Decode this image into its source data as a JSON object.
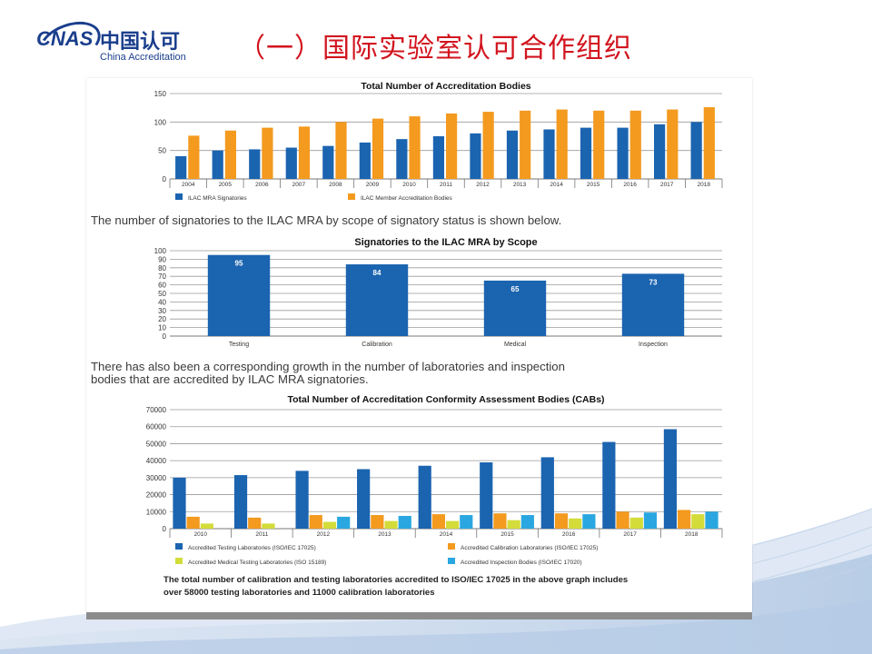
{
  "header": {
    "logo_mark": "CNAS",
    "logo_cn": "中国认可",
    "logo_en": "China Accreditation",
    "title": "（一）国际实验室认可合作组织"
  },
  "text": {
    "para1": "The number of signatories to the ILAC MRA by scope of signatory status is shown below.",
    "para2_line1": "There has also been a corresponding growth in the number of laboratories and inspection",
    "para2_line2": "bodies that are accredited by ILAC MRA signatories.",
    "note_line1": "The total number of calibration and testing laboratories accredited to ISO/IEC 17025 in the above graph includes",
    "note_line2": "over 58000 testing laboratories and 11000 calibration laboratories"
  },
  "colors": {
    "blue": "#1b64b0",
    "orange": "#f39a1f",
    "yellow": "#d4dc3a",
    "cyan": "#2aa7e0",
    "title_red": "#d2141e"
  },
  "chart_data": [
    {
      "type": "bar",
      "title": "Total Number of Accreditation Bodies",
      "categories": [
        "2004",
        "2005",
        "2006",
        "2007",
        "2008",
        "2009",
        "2010",
        "2011",
        "2012",
        "2013",
        "2014",
        "2015",
        "2016",
        "2017",
        "2018"
      ],
      "series": [
        {
          "name": "ILAC MRA Signatories",
          "color": "#1b64b0",
          "values": [
            40,
            50,
            52,
            55,
            58,
            64,
            70,
            75,
            80,
            85,
            87,
            90,
            90,
            96,
            100
          ]
        },
        {
          "name": "ILAC Member Accreditation Bodies",
          "color": "#f39a1f",
          "values": [
            76,
            85,
            90,
            92,
            100,
            106,
            110,
            115,
            118,
            120,
            122,
            120,
            120,
            122,
            126
          ]
        }
      ],
      "ylim": [
        0,
        150
      ],
      "yticks": [
        0,
        50,
        100,
        150
      ],
      "legend": "bottom"
    },
    {
      "type": "bar",
      "title": "Signatories to the ILAC MRA by Scope",
      "categories": [
        "Testing",
        "Calibration",
        "Medical",
        "Inspection"
      ],
      "values": [
        95,
        84,
        65,
        73
      ],
      "data_labels": [
        "95",
        "84",
        "65",
        "73"
      ],
      "color": "#1b64b0",
      "ylim": [
        0,
        100
      ],
      "yticks": [
        0,
        10,
        20,
        30,
        40,
        50,
        60,
        70,
        80,
        90,
        100
      ]
    },
    {
      "type": "bar",
      "title": "Total Number of Accreditation Conformity Assessment Bodies (CABs)",
      "categories": [
        "2010",
        "2011",
        "2012",
        "2013",
        "2014",
        "2015",
        "2016",
        "2017",
        "2018"
      ],
      "series": [
        {
          "name": "Accredited Testing Laboratories (ISO/IEC 17025)",
          "color": "#1b64b0",
          "values": [
            30000,
            31500,
            34000,
            35000,
            37000,
            39000,
            42000,
            51000,
            58500
          ]
        },
        {
          "name": "Accredited Calibration Laboratories (ISO/IEC 17025)",
          "color": "#f39a1f",
          "values": [
            7000,
            6500,
            8000,
            8000,
            8500,
            9000,
            9000,
            10000,
            11000
          ]
        },
        {
          "name": "Accredited Medical Testing Laboratories (ISO 15189)",
          "color": "#d4dc3a",
          "values": [
            3000,
            3000,
            4000,
            4500,
            4500,
            5000,
            6000,
            6500,
            8500
          ]
        },
        {
          "name": "Accredited Inspection Bodies (ISO/IEC 17020)",
          "color": "#2aa7e0",
          "values": [
            0,
            0,
            7000,
            7500,
            8000,
            8000,
            8500,
            9500,
            10000
          ]
        }
      ],
      "ylim": [
        0,
        70000
      ],
      "yticks": [
        0,
        10000,
        20000,
        30000,
        40000,
        50000,
        60000,
        70000
      ],
      "legend": "bottom"
    }
  ]
}
